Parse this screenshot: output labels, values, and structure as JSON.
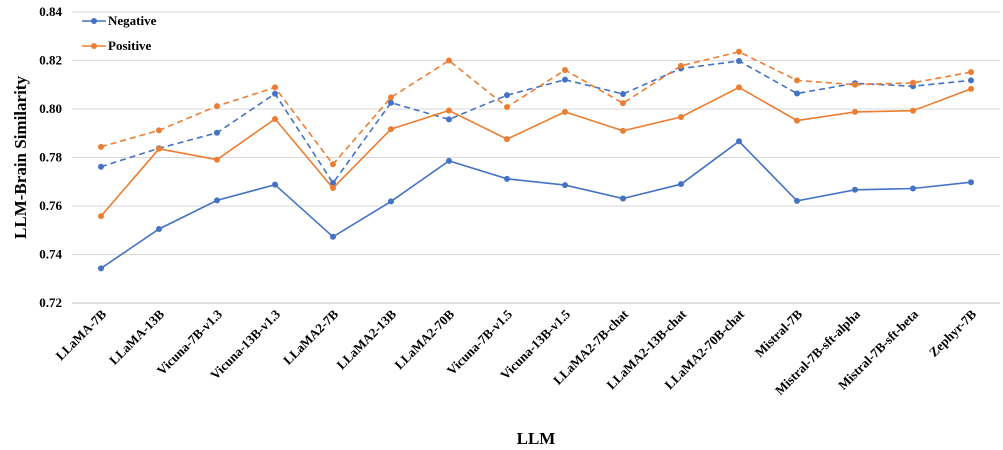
{
  "chart_data": {
    "type": "line",
    "xlabel": "LLM",
    "ylabel": "LLM-Brain Similarity",
    "ylim": [
      0.72,
      0.84
    ],
    "yticks": [
      "0.72",
      "0.74",
      "0.76",
      "0.78",
      "0.80",
      "0.82",
      "0.84"
    ],
    "grid": true,
    "legend_position": "top-left",
    "categories": [
      "LLaMA-7B",
      "LLaMA-13B",
      "Vicuna-7B-v1.3",
      "Vicuna-13B-v1.3",
      "LLaMA2-7B",
      "LLaMA2-13B",
      "LLaMA2-70B",
      "Vicuna-7B-v1.5",
      "Vicuna-13B-v1.5",
      "LLaMA2-7B-chat",
      "LLaMA2-13B-chat",
      "LLaMA2-70B-chat",
      "Mistral-7B",
      "Mistral-7B-sft-alpha",
      "Mistral-7B-sft-beta",
      "Zephyr-7B"
    ],
    "series": [
      {
        "name": "Negative",
        "style": "solid",
        "color": "#4472C4",
        "values": [
          0.7343,
          0.7505,
          0.7623,
          0.7688,
          0.7473,
          0.7619,
          0.7786,
          0.7712,
          0.7686,
          0.7631,
          0.769,
          0.7867,
          0.7621,
          0.7667,
          0.7672,
          0.7698
        ]
      },
      {
        "name": "",
        "style": "dashed",
        "color": "#4472C4",
        "values": [
          0.7762,
          0.7838,
          0.7902,
          0.8063,
          0.7695,
          0.8026,
          0.7957,
          0.8057,
          0.8121,
          0.8062,
          0.8167,
          0.8198,
          0.8064,
          0.8106,
          0.8094,
          0.8118
        ]
      },
      {
        "name": "Positive",
        "style": "solid",
        "color": "#ED7D31",
        "values": [
          0.7558,
          0.7836,
          0.7791,
          0.7959,
          0.7674,
          0.7917,
          0.7994,
          0.7876,
          0.7988,
          0.791,
          0.7967,
          0.8089,
          0.7952,
          0.7988,
          0.7993,
          0.8083
        ]
      },
      {
        "name": "",
        "style": "dashed",
        "color": "#ED7D31",
        "values": [
          0.7844,
          0.7912,
          0.8012,
          0.8089,
          0.7772,
          0.8048,
          0.82,
          0.8008,
          0.8161,
          0.8024,
          0.8178,
          0.8236,
          0.8118,
          0.81,
          0.8108,
          0.8152
        ]
      }
    ]
  }
}
